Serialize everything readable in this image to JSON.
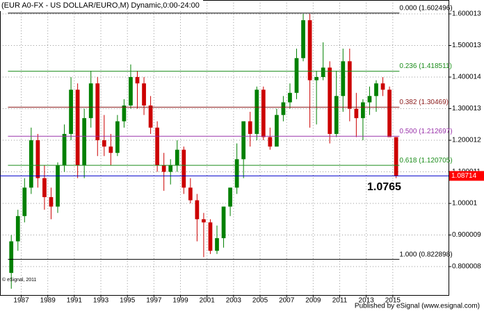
{
  "chart_data": {
    "type": "candlestick",
    "title": "(EUR A0-FX - US DOLLAR/EURO,M) Dynamic,0:00-24:00",
    "x": [
      1986.0,
      1986.5,
      1987.0,
      1987.5,
      1988.0,
      1988.5,
      1989.0,
      1989.5,
      1990.0,
      1990.5,
      1991.0,
      1991.5,
      1992.0,
      1992.5,
      1993.0,
      1993.5,
      1994.0,
      1994.5,
      1995.0,
      1995.5,
      1996.0,
      1996.5,
      1997.0,
      1997.5,
      1998.0,
      1998.5,
      1999.0,
      1999.5,
      2000.0,
      2000.5,
      2001.0,
      2001.5,
      2002.0,
      2002.5,
      2003.0,
      2003.5,
      2004.0,
      2004.5,
      2005.0,
      2005.5,
      2006.0,
      2006.5,
      2007.0,
      2007.5,
      2008.0,
      2008.5,
      2009.0,
      2009.5,
      2010.0,
      2010.5,
      2011.0,
      2011.5,
      2012.0,
      2012.5,
      2013.0,
      2013.5,
      2014.0,
      2014.5,
      2015.0
    ],
    "open": [
      0.78,
      0.88,
      0.96,
      1.05,
      1.2,
      1.08,
      1.02,
      0.99,
      1.12,
      1.22,
      1.36,
      1.12,
      1.27,
      1.38,
      1.2,
      1.18,
      1.16,
      1.26,
      1.31,
      1.4,
      1.38,
      1.31,
      1.24,
      1.12,
      1.1,
      1.12,
      1.17,
      1.05,
      1.01,
      0.95,
      0.94,
      0.85,
      0.89,
      0.99,
      1.05,
      1.14,
      1.26,
      1.22,
      1.36,
      1.21,
      1.18,
      1.28,
      1.32,
      1.35,
      1.46,
      1.58,
      1.39,
      1.4,
      1.43,
      1.22,
      1.34,
      1.45,
      1.3,
      1.27,
      1.32,
      1.34,
      1.38,
      1.36,
      1.21
    ],
    "high": [
      0.9,
      0.98,
      1.08,
      1.24,
      1.22,
      1.12,
      1.05,
      1.13,
      1.25,
      1.4,
      1.38,
      1.3,
      1.42,
      1.4,
      1.28,
      1.22,
      1.28,
      1.33,
      1.44,
      1.42,
      1.4,
      1.34,
      1.26,
      1.16,
      1.14,
      1.2,
      1.18,
      1.08,
      1.03,
      0.97,
      0.95,
      0.93,
      0.99,
      1.05,
      1.19,
      1.26,
      1.29,
      1.37,
      1.37,
      1.24,
      1.3,
      1.34,
      1.38,
      1.49,
      1.6,
      1.6,
      1.42,
      1.51,
      1.45,
      1.42,
      1.49,
      1.49,
      1.35,
      1.33,
      1.37,
      1.39,
      1.4,
      1.37,
      1.21
    ],
    "low": [
      0.73,
      0.85,
      0.94,
      1.03,
      1.05,
      0.98,
      0.95,
      0.97,
      1.1,
      1.2,
      1.08,
      1.08,
      1.24,
      1.15,
      1.15,
      1.12,
      1.15,
      1.24,
      1.3,
      1.3,
      1.28,
      1.22,
      1.1,
      1.04,
      1.06,
      1.1,
      1.03,
      1.0,
      0.88,
      0.83,
      0.84,
      0.84,
      0.86,
      0.96,
      1.03,
      1.08,
      1.18,
      1.2,
      1.2,
      1.17,
      1.18,
      1.26,
      1.3,
      1.33,
      1.45,
      1.24,
      1.25,
      1.39,
      1.19,
      1.21,
      1.29,
      1.26,
      1.21,
      1.2,
      1.28,
      1.29,
      1.34,
      1.21,
      1.08
    ],
    "close": [
      0.88,
      0.96,
      1.05,
      1.2,
      1.08,
      1.02,
      0.99,
      1.12,
      1.22,
      1.36,
      1.12,
      1.27,
      1.38,
      1.2,
      1.18,
      1.16,
      1.26,
      1.31,
      1.4,
      1.38,
      1.31,
      1.24,
      1.12,
      1.1,
      1.12,
      1.17,
      1.05,
      1.01,
      0.95,
      0.94,
      0.85,
      0.89,
      0.99,
      1.05,
      1.14,
      1.26,
      1.22,
      1.36,
      1.21,
      1.18,
      1.28,
      1.32,
      1.35,
      1.46,
      1.58,
      1.39,
      1.4,
      1.43,
      1.22,
      1.34,
      1.45,
      1.3,
      1.27,
      1.32,
      1.34,
      1.38,
      1.36,
      1.21,
      1.087
    ],
    "up_color": "#008000",
    "down_color": "#cc0000",
    "xlim": [
      1985.4,
      2019.2
    ],
    "ylim": [
      0.71,
      1.644
    ],
    "xticks": [
      1987,
      1989,
      1991,
      1993,
      1995,
      1997,
      1999,
      2001,
      2003,
      2005,
      2007,
      2009,
      2011,
      2013,
      2015
    ],
    "yticks": [
      0.800008,
      0.900009,
      1.00001,
      1.100011,
      1.200012,
      1.300013,
      1.400014,
      1.500013,
      1.600013
    ],
    "grid": true,
    "levels": [
      {
        "label": "0.000 (1.602496)",
        "value": 1.602496,
        "color": "#000000"
      },
      {
        "label": "0.236 (1.418511)",
        "value": 1.418511,
        "color": "#1a8c1a"
      },
      {
        "label": "0.382 (1.30469)",
        "value": 1.30469,
        "color": "#8b1a1a"
      },
      {
        "label": "0.500 (1.212697)",
        "value": 1.212697,
        "color": "#9933aa"
      },
      {
        "label": "0.618 (1.120705)",
        "value": 1.120705,
        "color": "#1a8c1a"
      },
      {
        "label": "1.000 (0.822898)",
        "value": 0.822898,
        "color": "#000000"
      }
    ],
    "price_line": {
      "value": 1.08714,
      "color": "#0000cc",
      "label_color": "#ff0000"
    },
    "annotation": "1.0765",
    "watermark": "© eSignal, 2011",
    "footer": "Published by eSignal (www.esignal.com)"
  }
}
